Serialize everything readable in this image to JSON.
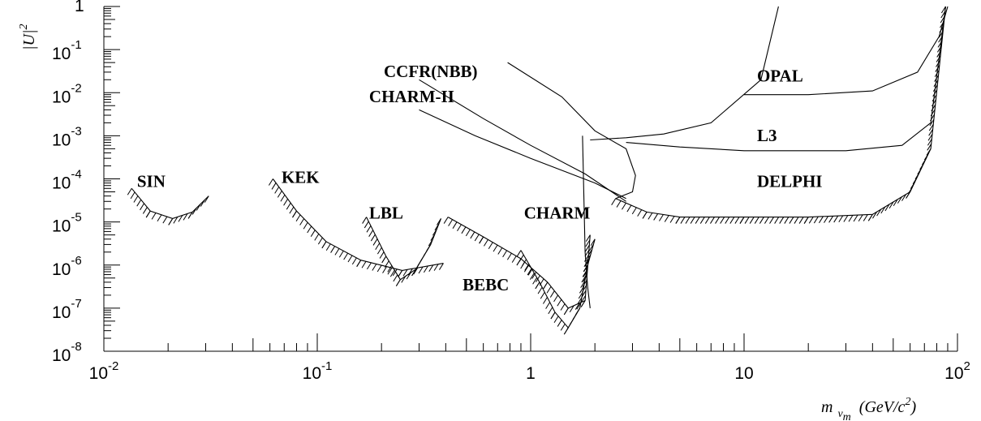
{
  "chart_data": {
    "type": "line",
    "xlabel": "m",
    "xlabel_sub": "ν",
    "xlabel_subsub": "m",
    "xlabel_units": "(GeV/c",
    "xlabel_units_exp": "2",
    "xlabel_units_close": ")",
    "ylabel": "|U|",
    "ylabel_exp": "2",
    "xscale": "log",
    "yscale": "log",
    "xlim": [
      0.01,
      100
    ],
    "ylim": [
      1e-08,
      1
    ],
    "x_ticks": [
      {
        "base": "10",
        "exp": "-2",
        "value": 0.01
      },
      {
        "base": "10",
        "exp": "-1",
        "value": 0.1
      },
      {
        "base": "1",
        "exp": "",
        "value": 1
      },
      {
        "base": "10",
        "exp": "",
        "value": 10
      },
      {
        "base": "10",
        "exp": "2",
        "value": 100
      }
    ],
    "y_ticks": [
      {
        "base": "10",
        "exp": "-8",
        "value": 1e-08
      },
      {
        "base": "10",
        "exp": "-7",
        "value": 1e-07
      },
      {
        "base": "10",
        "exp": "-6",
        "value": 1e-06
      },
      {
        "base": "10",
        "exp": "-5",
        "value": 1e-05
      },
      {
        "base": "10",
        "exp": "-4",
        "value": 0.0001
      },
      {
        "base": "10",
        "exp": "-3",
        "value": 0.001
      },
      {
        "base": "10",
        "exp": "-2",
        "value": 0.01
      },
      {
        "base": "10",
        "exp": "-1",
        "value": 0.1
      },
      {
        "base": "1",
        "exp": "",
        "value": 1
      }
    ],
    "grid": false,
    "legend": "none",
    "series": [
      {
        "name": "SIN",
        "hatch": true,
        "x": [
          0.0135,
          0.0165,
          0.021,
          0.026,
          0.031
        ],
        "y": [
          6e-05,
          1.8e-05,
          1.2e-05,
          1.7e-05,
          4e-05
        ]
      },
      {
        "name": "KEK",
        "hatch": true,
        "x": [
          0.062,
          0.08,
          0.11,
          0.16,
          0.25,
          0.39
        ],
        "y": [
          0.0001,
          1.8e-05,
          3.5e-06,
          1.3e-06,
          7.5e-07,
          1.1e-06
        ]
      },
      {
        "name": "LBL",
        "hatch": true,
        "x": [
          0.17,
          0.21,
          0.245,
          0.29,
          0.34,
          0.38
        ],
        "y": [
          1.3e-05,
          1.6e-06,
          4.6e-07,
          8e-07,
          3e-06,
          1.2e-05
        ]
      },
      {
        "name": "CHARM",
        "hatch": true,
        "x": [
          0.41,
          0.6,
          0.9,
          1.2,
          1.5,
          1.8,
          1.9
        ],
        "y": [
          1.3e-05,
          4.5e-06,
          1.4e-06,
          4e-07,
          1e-07,
          1.5e-07,
          5e-06
        ]
      },
      {
        "name": "BEBC",
        "hatch": true,
        "x": [
          0.9,
          1.1,
          1.3,
          1.5,
          1.7,
          1.85,
          2.0
        ],
        "y": [
          2.2e-06,
          4e-07,
          8e-08,
          3.5e-08,
          1e-07,
          1e-06,
          4e-06
        ]
      },
      {
        "name": "CHARM-II",
        "hatch": false,
        "x": [
          0.3,
          0.55,
          1.0,
          2.0,
          2.8
        ],
        "y": [
          0.004,
          0.001,
          0.0003,
          8e-05,
          3.5e-05
        ]
      },
      {
        "name": "CCFR(NBB)",
        "hatch": false,
        "x": [
          0.3,
          0.6,
          1.0,
          1.8,
          2.8
        ],
        "y": [
          0.02,
          0.0025,
          0.0006,
          0.00013,
          3e-05
        ]
      },
      {
        "name": "DELPHI",
        "hatch": true,
        "x": [
          2.5,
          3.5,
          5,
          10,
          20,
          40,
          60,
          75,
          88
        ],
        "y": [
          3.5e-05,
          1.7e-05,
          1.3e-05,
          1.3e-05,
          1.3e-05,
          1.5e-05,
          5e-05,
          0.0005,
          1
        ]
      },
      {
        "name": "L3",
        "hatch": false,
        "x": [
          2.8,
          5,
          10,
          30,
          55,
          75,
          88
        ],
        "y": [
          0.0007,
          0.00055,
          0.00045,
          0.00045,
          0.0006,
          0.002,
          1
        ]
      },
      {
        "name": "OPAL",
        "hatch": false,
        "x": [
          10,
          20,
          40,
          65,
          82,
          90
        ],
        "y": [
          0.009,
          0.009,
          0.011,
          0.03,
          0.2,
          1
        ]
      },
      {
        "name": "",
        "hatch": false,
        "x": [
          1.9,
          2.8,
          4.2,
          7,
          12,
          14.5
        ],
        "y": [
          0.0008,
          0.0009,
          0.0011,
          0.002,
          0.02,
          1
        ]
      },
      {
        "name": "",
        "hatch": false,
        "x": [
          0.78,
          1.4,
          2.0,
          2.8,
          3.1,
          3.0,
          2.5
        ],
        "y": [
          0.05,
          0.008,
          0.0013,
          0.0005,
          0.00012,
          5e-05,
          3.5e-05
        ]
      },
      {
        "name": "",
        "hatch": false,
        "x": [
          1.75,
          1.8,
          1.85,
          1.9
        ],
        "y": [
          0.001,
          2e-06,
          3e-07,
          1e-07
        ]
      }
    ]
  }
}
